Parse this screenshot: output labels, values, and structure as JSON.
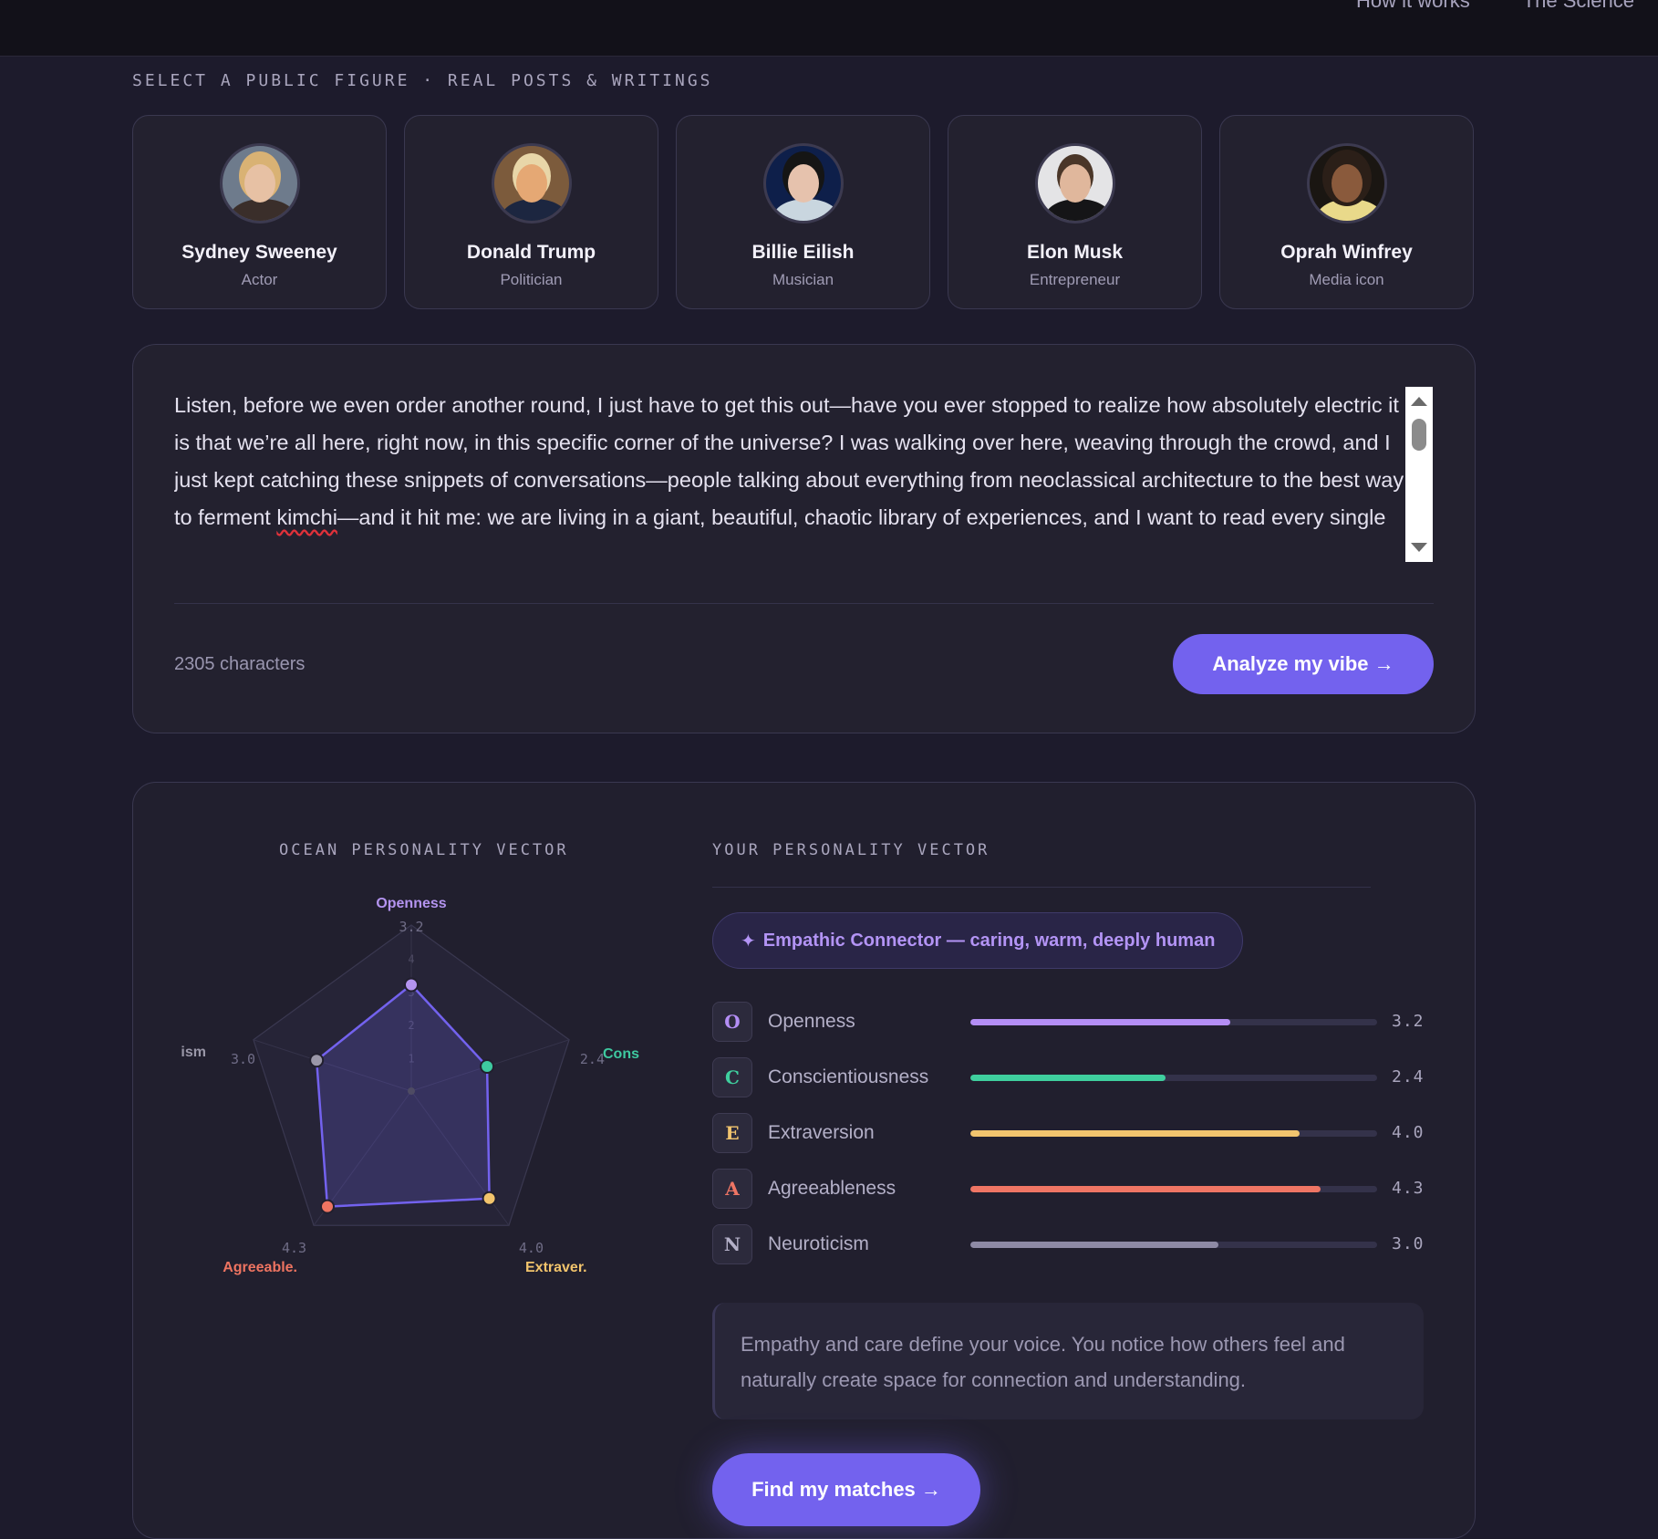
{
  "nav": {
    "items": [
      {
        "label": "How it works"
      },
      {
        "label": "The Science"
      }
    ]
  },
  "figures_section": {
    "label": "SELECT A PUBLIC FIGURE · REAL POSTS & WRITINGS",
    "figures": [
      {
        "name": "Sydney Sweeney",
        "role": "Actor"
      },
      {
        "name": "Donald Trump",
        "role": "Politician"
      },
      {
        "name": "Billie Eilish",
        "role": "Musician"
      },
      {
        "name": "Elon Musk",
        "role": "Entrepreneur"
      },
      {
        "name": "Oprah Winfrey",
        "role": "Media icon"
      }
    ]
  },
  "editor": {
    "text_before": "Listen, before we even order another round, I just have to get this out—have you ever stopped to realize how absolutely electric it is that we’re all here, right now, in this specific corner of the universe? I was walking over here, weaving through the crowd, and I just kept catching these snippets of conversations—people talking about everything from neoclassical architecture to the best way to ferment ",
    "misspelled_word": "kimchi",
    "text_after": "—and it hit me: we are living in a giant, beautiful, chaotic library of experiences, and I want to read every single book on the shelf",
    "char_count": "2305 characters",
    "analyze_label": "Analyze my vibe →"
  },
  "radar": {
    "title": "OCEAN PERSONALITY VECTOR",
    "axes": [
      {
        "label": "Openness",
        "value_label": "3.2",
        "value": 3.2,
        "color": "#b494f0"
      },
      {
        "label": "Cons",
        "value_label": "2.4",
        "value": 2.4,
        "color": "#3ec9a0"
      },
      {
        "label": "Extraver.",
        "value_label": "4.0",
        "value": 4.0,
        "color": "#f2c46c"
      },
      {
        "label": "Agreeable.",
        "value_label": "4.3",
        "value": 4.3,
        "color": "#ee7461"
      },
      {
        "label": "ism",
        "value_label": "3.0",
        "value": 3.0,
        "color": "#9a97a8"
      }
    ],
    "rings": [
      "1",
      "2",
      "3",
      "4"
    ],
    "max": 5
  },
  "vector": {
    "title": "YOUR PERSONALITY VECTOR",
    "badge_icon": "✦",
    "badge": "Empathic Connector — caring, warm, deeply human",
    "traits": [
      {
        "letter": "O",
        "name": "Openness",
        "value": "3.2",
        "fraction": 0.64,
        "color": "#b48ef5"
      },
      {
        "letter": "C",
        "name": "Conscientiousness",
        "value": "2.4",
        "fraction": 0.48,
        "color": "#3fcf9e"
      },
      {
        "letter": "E",
        "name": "Extraversion",
        "value": "4.0",
        "fraction": 0.81,
        "color": "#f1c46e"
      },
      {
        "letter": "A",
        "name": "Agreeableness",
        "value": "4.3",
        "fraction": 0.86,
        "color": "#ef7564"
      },
      {
        "letter": "N",
        "name": "Neuroticism",
        "value": "3.0",
        "fraction": 0.61,
        "color": "#8e8aa5"
      }
    ],
    "description": "Empathy and care define your voice. You notice how others feel and naturally create space for connection and understanding.",
    "matches_label": "Find my matches →"
  }
}
